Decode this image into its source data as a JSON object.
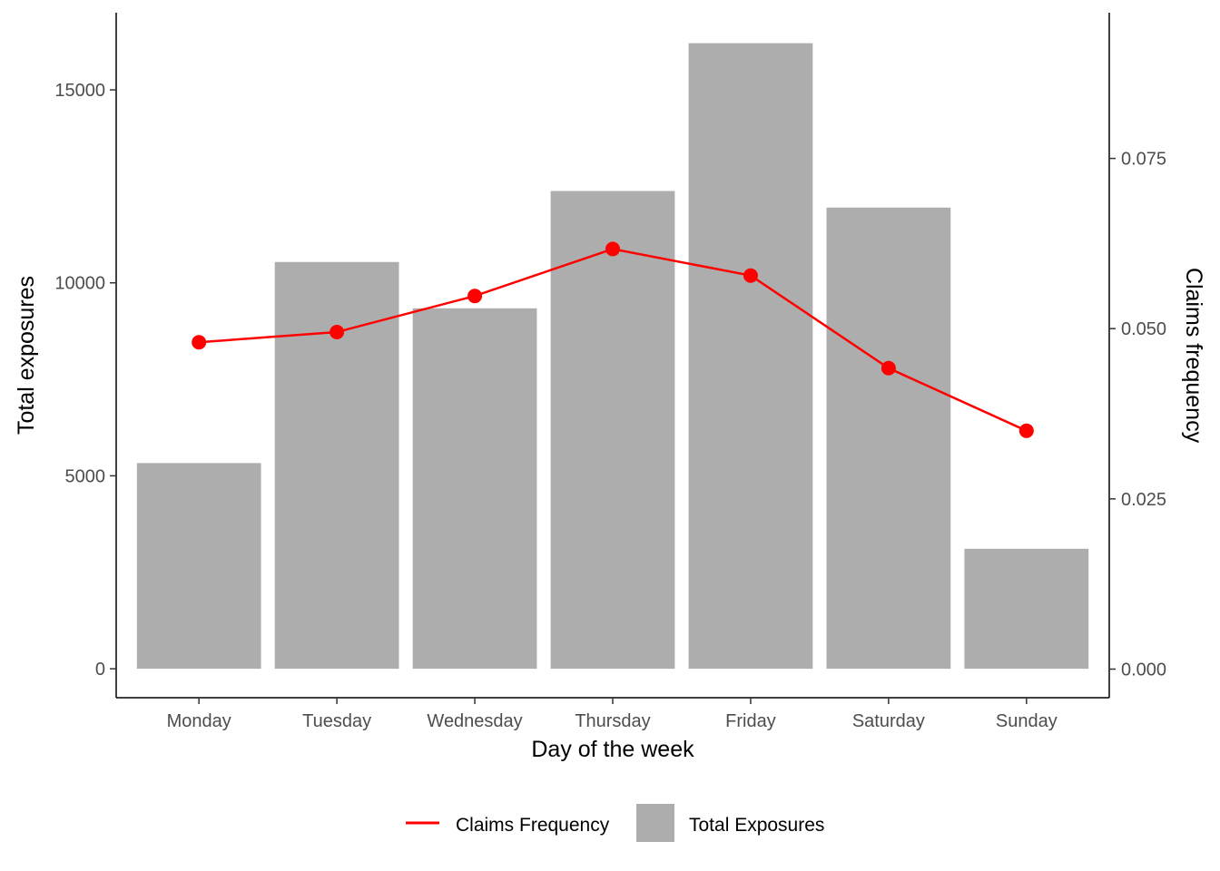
{
  "chart_data": {
    "type": "bar",
    "categories": [
      "Monday",
      "Tuesday",
      "Wednesday",
      "Thursday",
      "Friday",
      "Saturday",
      "Sunday"
    ],
    "series": [
      {
        "name": "Total Exposures",
        "type": "bar",
        "axis": "left",
        "color": "#adadad",
        "values": [
          5330,
          10540,
          9340,
          12380,
          16210,
          11950,
          3110
        ]
      },
      {
        "name": "Claims Frequency",
        "type": "line",
        "axis": "right",
        "color": "#ff0000",
        "values": [
          0.048,
          0.0495,
          0.0548,
          0.0617,
          0.0578,
          0.0442,
          0.035
        ]
      }
    ],
    "xlabel": "Day of the week",
    "ylabel": "Total exposures",
    "ylabel_right": "Claims frequency",
    "ylim": [
      -750,
      17000
    ],
    "ylim_right": [
      -0.0042,
      0.0964
    ],
    "yticks": [
      0,
      5000,
      10000,
      15000
    ],
    "yticks_right": [
      "0.000",
      "0.025",
      "0.050",
      "0.075"
    ],
    "grid": false,
    "legend_position": "bottom"
  }
}
